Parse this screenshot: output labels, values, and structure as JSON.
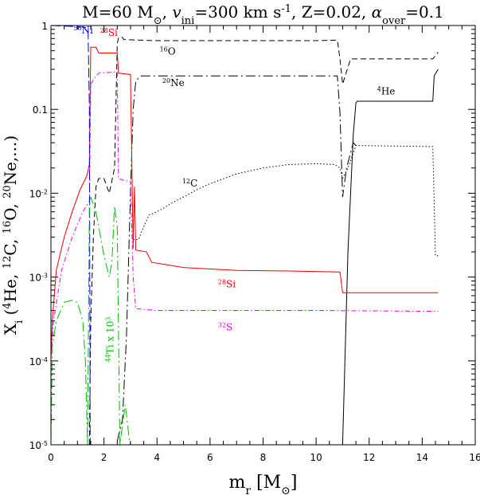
{
  "chart_data": {
    "type": "line",
    "title_segments": [
      {
        "t": "M=60 M",
        "s": "normal"
      },
      {
        "t": "⊙",
        "s": "sub"
      },
      {
        "t": ", ",
        "s": "normal"
      },
      {
        "t": "v",
        "s": "italic"
      },
      {
        "t": "ini",
        "s": "sub"
      },
      {
        "t": "=300 km s",
        "s": "normal"
      },
      {
        "t": "-1",
        "s": "sup"
      },
      {
        "t": ", Z=0.02, ",
        "s": "normal"
      },
      {
        "t": "α",
        "s": "italic"
      },
      {
        "t": "over",
        "s": "sub"
      },
      {
        "t": "=0.1",
        "s": "normal"
      }
    ],
    "xlabel_segments": [
      {
        "t": "m",
        "s": "normal"
      },
      {
        "t": "r",
        "s": "sub"
      },
      {
        "t": " [M",
        "s": "normal"
      },
      {
        "t": "⊙",
        "s": "sub"
      },
      {
        "t": "]",
        "s": "normal"
      }
    ],
    "ylabel_segments": [
      {
        "t": "X",
        "s": "normal"
      },
      {
        "t": "i",
        "s": "sub"
      },
      {
        "t": " (",
        "s": "normal"
      },
      {
        "t": "4",
        "s": "sup"
      },
      {
        "t": "He, ",
        "s": "normal"
      },
      {
        "t": "12",
        "s": "sup"
      },
      {
        "t": "C, ",
        "s": "normal"
      },
      {
        "t": "16",
        "s": "sup"
      },
      {
        "t": "O, ",
        "s": "normal"
      },
      {
        "t": "20",
        "s": "sup"
      },
      {
        "t": "Ne,...)",
        "s": "normal"
      }
    ],
    "xlim": [
      0,
      16
    ],
    "ylim": [
      1e-05,
      1
    ],
    "yscale": "log",
    "x_ticks": [
      0,
      2,
      4,
      6,
      8,
      10,
      12,
      14,
      16
    ],
    "x_tick_labels": [
      "0",
      "2",
      "4",
      "6",
      "8",
      "10",
      "12",
      "14",
      "16"
    ],
    "y_ticks": [
      1e-05,
      0.0001,
      0.001,
      0.01,
      0.1,
      1
    ],
    "y_tick_labels": [
      [
        {
          "t": "10",
          "s": "normal"
        },
        {
          "t": "-5",
          "s": "sup"
        }
      ],
      [
        {
          "t": "10",
          "s": "normal"
        },
        {
          "t": "-4",
          "s": "sup"
        }
      ],
      [
        {
          "t": "10",
          "s": "normal"
        },
        {
          "t": "-3",
          "s": "sup"
        }
      ],
      [
        {
          "t": "10",
          "s": "normal"
        },
        {
          "t": "-2",
          "s": "sup"
        }
      ],
      [
        {
          "t": "0.1",
          "s": "normal"
        }
      ],
      [
        {
          "t": "1",
          "s": "normal"
        }
      ]
    ],
    "grid": false,
    "series": [
      {
        "id": "he4",
        "color": "#000000",
        "dash": "none",
        "points": [
          [
            11.0,
            1e-05
          ],
          [
            11.2,
            0.002
          ],
          [
            11.4,
            0.05
          ],
          [
            11.5,
            0.12
          ],
          [
            11.55,
            0.125
          ],
          [
            14.4,
            0.125
          ],
          [
            14.45,
            0.25
          ],
          [
            14.6,
            0.3
          ]
        ]
      },
      {
        "id": "c12",
        "color": "#000000",
        "dash": "1.5,2.5",
        "points": [
          [
            3.1,
            0.0028
          ],
          [
            3.3,
            0.0028
          ],
          [
            3.5,
            0.004
          ],
          [
            3.7,
            0.0055
          ],
          [
            3.9,
            0.0058
          ],
          [
            4.2,
            0.0065
          ],
          [
            4.6,
            0.0078
          ],
          [
            5.0,
            0.009
          ],
          [
            5.5,
            0.011
          ],
          [
            6.0,
            0.013
          ],
          [
            7.0,
            0.017
          ],
          [
            8.0,
            0.02
          ],
          [
            9.0,
            0.022
          ],
          [
            10.0,
            0.0225
          ],
          [
            10.7,
            0.022
          ],
          [
            10.9,
            0.02
          ],
          [
            11.0,
            0.015
          ],
          [
            11.2,
            0.02
          ],
          [
            11.5,
            0.037
          ],
          [
            14.4,
            0.036
          ],
          [
            14.5,
            0.0018
          ],
          [
            14.6,
            0.0018
          ]
        ]
      },
      {
        "id": "o16",
        "color": "#000000",
        "dash": "7,4",
        "points": [
          [
            1.45,
            1e-05
          ],
          [
            1.5,
            0.0003
          ],
          [
            1.6,
            0.003
          ],
          [
            1.7,
            0.012
          ],
          [
            1.8,
            0.015
          ],
          [
            2.0,
            0.015
          ],
          [
            2.2,
            0.01
          ],
          [
            2.4,
            0.02
          ],
          [
            2.5,
            0.6
          ],
          [
            2.55,
            0.72
          ],
          [
            2.7,
            0.72
          ],
          [
            2.75,
            0.68
          ],
          [
            3.3,
            0.67
          ],
          [
            4.0,
            0.66
          ],
          [
            10.0,
            0.66
          ],
          [
            10.8,
            0.67
          ],
          [
            10.9,
            0.4
          ],
          [
            11.0,
            0.2
          ],
          [
            11.3,
            0.4
          ],
          [
            11.6,
            0.4
          ],
          [
            14.4,
            0.4
          ],
          [
            14.6,
            0.48
          ]
        ]
      },
      {
        "id": "ne20",
        "color": "#000000",
        "dash": "12,4,2,4",
        "points": [
          [
            2.5,
            1.1e-05
          ],
          [
            2.6,
            1.5e-05
          ],
          [
            2.7,
            2e-05
          ],
          [
            2.85,
            0.0002
          ],
          [
            3.0,
            0.01
          ],
          [
            3.1,
            0.1
          ],
          [
            3.2,
            0.22
          ],
          [
            3.4,
            0.25
          ],
          [
            5.0,
            0.25
          ],
          [
            8.0,
            0.25
          ],
          [
            10.0,
            0.25
          ],
          [
            10.8,
            0.25
          ],
          [
            10.9,
            0.09
          ],
          [
            11.0,
            0.009
          ],
          [
            11.15,
            0.02
          ],
          [
            11.4,
            0.04
          ],
          [
            11.5,
            0.037
          ]
        ]
      },
      {
        "id": "si28",
        "color": "#ee0000",
        "dash": "none",
        "points": [
          [
            0.0,
            0.00011
          ],
          [
            0.05,
            0.0003
          ],
          [
            0.2,
            0.0012
          ],
          [
            0.5,
            0.003
          ],
          [
            0.8,
            0.006
          ],
          [
            1.1,
            0.011
          ],
          [
            1.35,
            0.016
          ],
          [
            1.45,
            0.022
          ],
          [
            1.5,
            0.55
          ],
          [
            1.7,
            0.55
          ],
          [
            1.8,
            0.47
          ],
          [
            2.5,
            0.47
          ],
          [
            2.55,
            0.27
          ],
          [
            3.0,
            0.26
          ],
          [
            3.1,
            0.0022
          ],
          [
            3.15,
            0.012
          ],
          [
            3.2,
            0.0021
          ],
          [
            3.6,
            0.002
          ],
          [
            3.8,
            0.0015
          ],
          [
            5.0,
            0.0013
          ],
          [
            7.0,
            0.0012
          ],
          [
            9.0,
            0.00118
          ],
          [
            10.9,
            0.00115
          ],
          [
            11.0,
            0.00065
          ],
          [
            14.6,
            0.00065
          ]
        ]
      },
      {
        "id": "s32",
        "color": "#ee00ee",
        "dash": "6,3,1.5,3",
        "points": [
          [
            0.0,
            0.00011
          ],
          [
            0.1,
            0.0003
          ],
          [
            0.4,
            0.0012
          ],
          [
            0.8,
            0.003
          ],
          [
            1.2,
            0.006
          ],
          [
            1.45,
            0.008
          ],
          [
            1.5,
            0.2
          ],
          [
            1.7,
            0.25
          ],
          [
            1.8,
            0.27
          ],
          [
            2.5,
            0.28
          ],
          [
            2.55,
            0.015
          ],
          [
            2.8,
            0.014
          ],
          [
            3.0,
            0.014
          ],
          [
            3.1,
            0.001
          ],
          [
            3.2,
            0.00042
          ],
          [
            4.0,
            0.0004
          ],
          [
            7.0,
            0.0004
          ],
          [
            10.0,
            0.0004
          ],
          [
            14.6,
            0.00039
          ]
        ]
      },
      {
        "id": "ni56",
        "color": "#0000ee",
        "dash": "12,4",
        "points": [
          [
            0.0,
            1.0
          ],
          [
            1.0,
            0.97
          ],
          [
            1.3,
            0.95
          ],
          [
            1.4,
            0.9
          ],
          [
            1.45,
            0.1
          ],
          [
            1.48,
            1e-05
          ]
        ]
      },
      {
        "id": "ti44",
        "color": "#00bb00",
        "dash": "12,4,2,4",
        "points": [
          [
            0.0,
            1.1e-05
          ],
          [
            0.05,
            0.00015
          ],
          [
            0.2,
            0.0003
          ],
          [
            0.5,
            0.0005
          ],
          [
            0.8,
            0.00053
          ],
          [
            1.0,
            0.0005
          ],
          [
            1.2,
            0.0003
          ],
          [
            1.3,
            0.0001
          ],
          [
            1.38,
            1e-05
          ],
          [
            1.45,
            0.007
          ],
          [
            1.5,
            0.009
          ],
          [
            1.7,
            0.006
          ],
          [
            2.0,
            0.0018
          ],
          [
            2.2,
            0.001
          ],
          [
            2.3,
            0.0015
          ],
          [
            2.4,
            0.007
          ],
          [
            2.5,
            0.004
          ],
          [
            2.6,
            1e-05
          ],
          [
            2.8,
            3e-05
          ],
          [
            2.95,
            1.2e-05
          ],
          [
            3.0,
            1e-05
          ]
        ]
      }
    ],
    "annotations": [
      {
        "id": "ni56-label",
        "x": 0.85,
        "y": 0.8,
        "color": "#0000ee",
        "segments": [
          {
            "t": "56",
            "s": "sup"
          },
          {
            "t": "Ni",
            "s": "normal"
          }
        ]
      },
      {
        "id": "si28-label-top",
        "x": 1.85,
        "y": 0.75,
        "color": "#ee0000",
        "segments": [
          {
            "t": "28",
            "s": "sup"
          },
          {
            "t": "Si",
            "s": "normal"
          }
        ]
      },
      {
        "id": "o16-label",
        "x": 4.1,
        "y": 0.45,
        "color": "#000000",
        "segments": [
          {
            "t": "16",
            "s": "sup"
          },
          {
            "t": "O",
            "s": "normal"
          }
        ]
      },
      {
        "id": "ne20-label",
        "x": 4.2,
        "y": 0.19,
        "color": "#000000",
        "segments": [
          {
            "t": "20",
            "s": "sup"
          },
          {
            "t": "Ne",
            "s": "normal"
          }
        ]
      },
      {
        "id": "he4-label",
        "x": 12.3,
        "y": 0.15,
        "color": "#000000",
        "segments": [
          {
            "t": "4",
            "s": "sup"
          },
          {
            "t": "He",
            "s": "normal"
          }
        ]
      },
      {
        "id": "c12-label",
        "x": 4.95,
        "y": 0.012,
        "color": "#000000",
        "segments": [
          {
            "t": "12",
            "s": "sup"
          },
          {
            "t": "C",
            "s": "normal"
          }
        ]
      },
      {
        "id": "si28-label-bottom",
        "x": 6.3,
        "y": 0.00075,
        "color": "#ee0000",
        "segments": [
          {
            "t": "28",
            "s": "sup"
          },
          {
            "t": "Si",
            "s": "normal"
          }
        ]
      },
      {
        "id": "s32-label",
        "x": 6.3,
        "y": 0.00023,
        "color": "#ee00ee",
        "segments": [
          {
            "t": "32",
            "s": "sup"
          },
          {
            "t": "S",
            "s": "normal"
          }
        ]
      }
    ],
    "ti44_annotation": {
      "x": 2.35,
      "y": 0.00018,
      "color": "#00bb00",
      "rotate": -90,
      "segments": [
        {
          "t": "44",
          "s": "sup"
        },
        {
          "t": "Ti x 10",
          "s": "normal"
        },
        {
          "t": "3",
          "s": "sup"
        }
      ]
    }
  }
}
